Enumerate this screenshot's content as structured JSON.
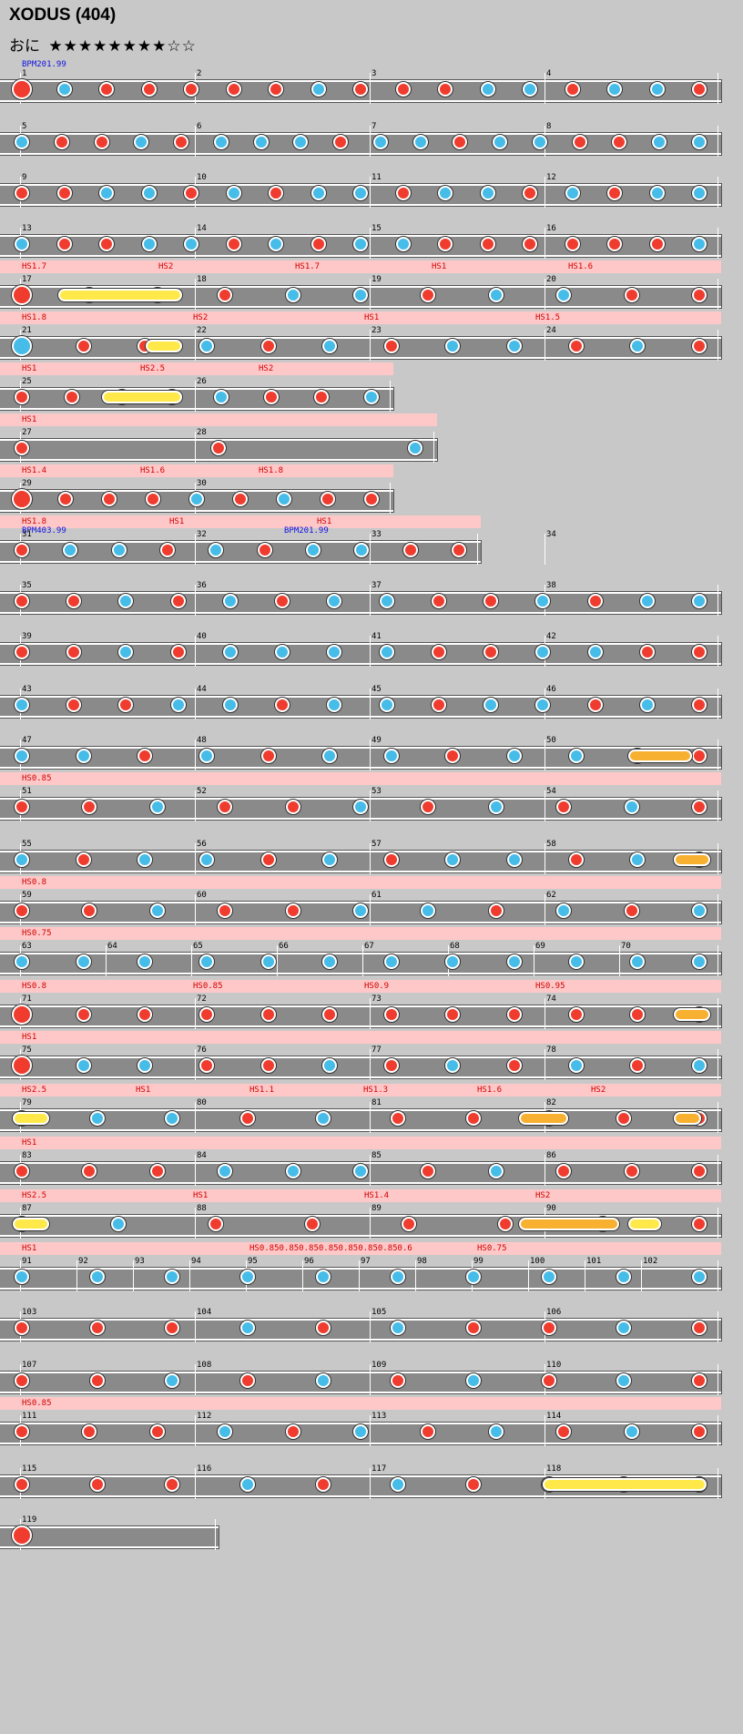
{
  "song": {
    "title": "XODUS (404)"
  },
  "difficulty": {
    "label": "おに",
    "stars": "★★★★★★★★☆☆"
  },
  "colors": {
    "background": "#c8c8c8",
    "lane": "#8a8a8a",
    "don": "#f03c2e",
    "ka": "#46bce8",
    "drumroll": "#ffe94a",
    "balloon": "#f8b030",
    "scroll_band": "#ffc8c8"
  },
  "rows": [
    {
      "bars": [
        "1",
        "2",
        "3",
        "4"
      ],
      "bpm": "BPM201.99",
      "bands": [],
      "pattern": "dbdddddbdddbbdbbd"
    },
    {
      "bars": [
        "5",
        "6",
        "7",
        "8"
      ],
      "bands": [],
      "pattern": "bddbdbbbdbbdbbddbb"
    },
    {
      "bars": [
        "9",
        "10",
        "11",
        "12"
      ],
      "bands": [],
      "pattern": "ddbbdbdbbdbbdbdbb"
    },
    {
      "bars": [
        "13",
        "14",
        "15",
        "16"
      ],
      "bands": [],
      "pattern": "bddbbdbdbbddddddb"
    },
    {
      "bars": [
        "17",
        "18",
        "19",
        "20"
      ],
      "bands": [
        "HS1.7",
        "HS2",
        "HS1.7",
        "HS1",
        "HS1.6"
      ],
      "pattern": "dbbdbbdbbdd"
    },
    {
      "bars": [
        "21",
        "22",
        "23",
        "24"
      ],
      "bands": [
        "HS1.8",
        "HS2",
        "HS1",
        "HS1.5"
      ],
      "pattern": "bddbdbdbbdbd"
    },
    {
      "bars": [
        "25",
        "26"
      ],
      "bands": [
        "HS1",
        "HS2.5",
        "HS2"
      ],
      "pattern": "ddbdbddb"
    },
    {
      "bars": [
        "27",
        "28"
      ],
      "bands": [
        "HS1"
      ],
      "pattern": "ddb"
    },
    {
      "bars": [
        "29",
        "30"
      ],
      "bands": [
        "HS1.4",
        "HS1.6",
        "HS1.8"
      ],
      "pattern": "ddddbdbdd"
    },
    {
      "bars": [
        "31",
        "32",
        "33",
        "34"
      ],
      "bpm": "BPM403.99",
      "bpm2": "BPM201.99",
      "bands": [
        "HS1.8",
        "HS1",
        "HS1"
      ],
      "pattern": "dbbdbdbbdd"
    },
    {
      "bars": [
        "35",
        "36",
        "37",
        "38"
      ],
      "bands": [],
      "pattern": "ddbdbdbbddbdbb"
    },
    {
      "bars": [
        "39",
        "40",
        "41",
        "42"
      ],
      "bands": [],
      "pattern": "ddbdbbbbddbbdd"
    },
    {
      "bars": [
        "43",
        "44",
        "45",
        "46"
      ],
      "bands": [],
      "pattern": "bddbbdbbdbbdbd"
    },
    {
      "bars": [
        "47",
        "48",
        "49",
        "50"
      ],
      "bands": [],
      "pattern": "bbdbdbbdbbdd"
    },
    {
      "bars": [
        "51",
        "52",
        "53",
        "54"
      ],
      "bands": [
        "HS0.85"
      ],
      "pattern": "ddbddbdbdbd"
    },
    {
      "bars": [
        "55",
        "56",
        "57",
        "58"
      ],
      "bands": [],
      "pattern": "bdbbdbdbbdbd"
    },
    {
      "bars": [
        "59",
        "60",
        "61",
        "62"
      ],
      "bands": [
        "HS0.8"
      ],
      "pattern": "ddbddbbdbdb"
    },
    {
      "bars": [
        "63",
        "64",
        "65",
        "66",
        "67",
        "68",
        "69",
        "70"
      ],
      "bands": [
        "HS0.75"
      ],
      "pattern": "bbbbbbbbbbbb"
    },
    {
      "bars": [
        "71",
        "72",
        "73",
        "74"
      ],
      "bands": [
        "HS0.8",
        "HS0.85",
        "HS0.9",
        "HS0.95"
      ],
      "pattern": "dddddddddddd"
    },
    {
      "bars": [
        "75",
        "76",
        "77",
        "78"
      ],
      "bands": [
        "HS1"
      ],
      "pattern": "dbbddbdbdbdb"
    },
    {
      "bars": [
        "79",
        "80",
        "81",
        "82"
      ],
      "bands": [
        "HS2.5",
        "HS1",
        "HS1.1",
        "HS1.3",
        "HS1.6",
        "HS2"
      ],
      "pattern": "dbbdbddddd"
    },
    {
      "bars": [
        "83",
        "84",
        "85",
        "86"
      ],
      "bands": [
        "HS1"
      ],
      "pattern": "dddbbbdbddd"
    },
    {
      "bars": [
        "87",
        "88",
        "89",
        "90"
      ],
      "bands": [
        "HS2.5",
        "HS1",
        "HS1.4",
        "HS2"
      ],
      "pattern": "dbddddbd"
    },
    {
      "bars": [
        "91",
        "92",
        "93",
        "94",
        "95",
        "96",
        "97",
        "98",
        "99",
        "100",
        "101",
        "102"
      ],
      "bands": [
        "HS1",
        "HS0.850.850.850.850.850.850.850.6",
        "HS0.75"
      ],
      "pattern": "bbbbbbbbbb"
    },
    {
      "bars": [
        "103",
        "104",
        "105",
        "106"
      ],
      "bands": [],
      "pattern": "dddbdbddbd"
    },
    {
      "bars": [
        "107",
        "108",
        "109",
        "110"
      ],
      "bands": [],
      "pattern": "ddbdbdbdbd"
    },
    {
      "bars": [
        "111",
        "112",
        "113",
        "114"
      ],
      "bands": [
        "HS0.85"
      ],
      "pattern": "dddbdbdbdbd"
    },
    {
      "bars": [
        "115",
        "116",
        "117",
        "118"
      ],
      "bands": [],
      "pattern": "dddbdbdbbb"
    },
    {
      "bars": [
        "119"
      ],
      "bands": [],
      "pattern": "d"
    }
  ]
}
